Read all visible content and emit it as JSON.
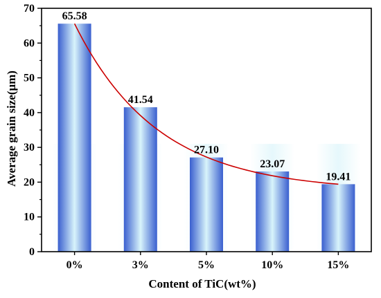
{
  "chart_data": {
    "type": "bar",
    "title": "",
    "xlabel": "Content of TiC(wt%)",
    "ylabel": "Average grain size(μm)",
    "categories": [
      "0%",
      "3%",
      "5%",
      "10%",
      "15%"
    ],
    "values": [
      65.58,
      41.54,
      27.1,
      23.07,
      19.41
    ],
    "value_labels": [
      "65.58",
      "41.54",
      "27.10",
      "23.07",
      "19.41"
    ],
    "ylim": [
      0,
      70
    ],
    "yticks": [
      0,
      10,
      20,
      30,
      40,
      50,
      60,
      70
    ],
    "ytick_labels": [
      "0",
      "10",
      "20",
      "30",
      "40",
      "50",
      "60",
      "70"
    ],
    "grid": false,
    "trend_line": {
      "type": "exponential-decay fit",
      "color": "#cc0000"
    },
    "bar_colors": {
      "edge": "#3a5fcf",
      "center": "#d8f4fb"
    }
  }
}
